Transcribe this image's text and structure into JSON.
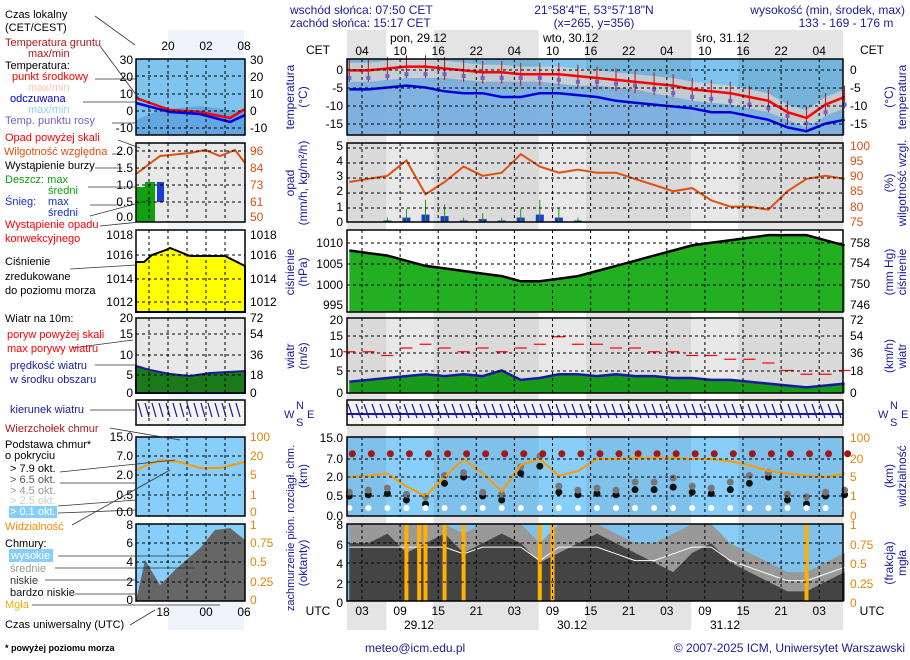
{
  "header": {
    "sunrise": "wschód słońca: 07:50 CET",
    "sunset": "zachód słońca: 15:17 CET",
    "coords": "21°58'4\"E, 53°57'18\"N",
    "grid": "(x=265,  y=356)",
    "elevation_label": "wysokość (min, środek, max)",
    "elevation_values": "133 - 169 - 176 m"
  },
  "time_axis": {
    "cet_label": "CET",
    "utc_label": "UTC",
    "days": [
      "pon, 29.12",
      "wto, 30.12",
      "śro, 31.12"
    ],
    "cet_hours": [
      "04",
      "10",
      "16",
      "22",
      "04",
      "10",
      "16",
      "22",
      "04",
      "10",
      "16",
      "22",
      "04"
    ],
    "utc_hours": [
      "03",
      "09",
      "15",
      "21",
      "03",
      "09",
      "15",
      "21",
      "03",
      "09",
      "15",
      "21",
      "03"
    ],
    "utc_dates": [
      "29.12",
      "30.12",
      "31.12"
    ]
  },
  "panel_labels": {
    "temp": [
      "temperatura",
      "(°C)"
    ],
    "precip": [
      "opad",
      "(mm/h, kg/m²/h)"
    ],
    "pressure": [
      "ciśnienie",
      "(hPa)"
    ],
    "wind": [
      "wiatr",
      "(m/s)"
    ],
    "cloud": [
      "zachmurzenie  pion. rozciągł. chm.",
      "(oktanty)",
      "(km)"
    ],
    "r_temp": [
      "(°C)",
      "temperatura"
    ],
    "r_hum": [
      "(%)",
      "wilgotność wzgl."
    ],
    "r_press": [
      "(mm Hg)",
      "ciśnienie"
    ],
    "r_wind": [
      "(km/h)",
      "wiatr"
    ],
    "r_vis": [
      "(km)",
      "widzialność"
    ],
    "r_fog": [
      "(frakcja)",
      "mgła"
    ],
    "compass": [
      "W",
      "S",
      "N",
      "E"
    ]
  },
  "ticks": {
    "temp": [
      "0",
      "-5",
      "-10",
      "-15"
    ],
    "precip": [
      "5",
      "4",
      "3",
      "2",
      "1",
      "0"
    ],
    "pressure": [
      "1010",
      "1005",
      "1000",
      "995"
    ],
    "wind": [
      "20",
      "15",
      "10",
      "5",
      "0"
    ],
    "cloud": [
      "15.0",
      "7.0",
      "2.0",
      "0.5",
      "0.0"
    ],
    "cover": [
      "8",
      "6",
      "4",
      "2",
      "0"
    ],
    "r_hum": [
      "100",
      "95",
      "90",
      "85",
      "80",
      "75"
    ],
    "r_press": [
      "758",
      "754",
      "750",
      "746"
    ],
    "r_wind": [
      "72",
      "54",
      "36",
      "18",
      "0"
    ],
    "r_vis": [
      "100",
      "20",
      "5",
      "1",
      "0"
    ],
    "r_fog": [
      "1",
      "0.75",
      "0.5",
      "0.25",
      "0"
    ]
  },
  "legend": {
    "local_time": [
      "Czas lokalny",
      "(CET/CEST)"
    ],
    "ground_temp": [
      "Temperatura gruntu",
      "max/min"
    ],
    "temperature": "Temperatura:",
    "mid_point": "punkt środkowy",
    "maxmin": "max/min",
    "feels_like": "odczuwana",
    "maxmin2": "max/min",
    "dew_point": "Temp. punktu rosy",
    "precip_over": "Opad powyżej skali",
    "humidity": "Wilgotność względna",
    "storm": "Wystąpienie burzy",
    "rain_max": "Deszcz: max",
    "rain_mean": "średni",
    "snow": "Śnieg:",
    "snow_max": "max",
    "snow_mean": "średni",
    "convective": [
      "Wystąpienie opadu",
      "konwekcyjnego"
    ],
    "pressure": [
      "Ciśnienie",
      "zredukowane",
      "do poziomu morza"
    ],
    "wind10": "Wiatr na 10m:",
    "gust_over": "poryw powyżej skali",
    "gust_max": "max porywy wiatru",
    "wind_speed": [
      "prędkość wiatru",
      "w środku obszaru"
    ],
    "wind_dir": "kierunek wiatru",
    "cloud_top": "Wierzchołek chmur",
    "cloud_base": [
      "Podstawa chmur*",
      "o pokryciu"
    ],
    "okt": [
      "> 7.9 okt.",
      "> 6.5 okt.",
      "> 4.5 okt.",
      "> 2.5 okt.",
      "> 0.1 okt."
    ],
    "visibility": "Widzialność",
    "clouds": "Chmury:",
    "high": "wysokie",
    "mid": "średnie",
    "low": "niskie",
    "very_low": "bardzo niskie",
    "fog": "Mgła",
    "utc_time": "Czas uniwersalny (UTC)",
    "footnote": "* powyżej poziomu morza",
    "mini_top": [
      "20",
      "02",
      "08"
    ],
    "mini_bottom": [
      "18",
      "00",
      "06"
    ],
    "mini_temp": [
      "30",
      "20",
      "10",
      "0",
      "-10"
    ],
    "mini_precip": [
      "2.0",
      "1.5",
      "1.0",
      "0.5",
      "0.0"
    ],
    "mini_hum": [
      "96",
      "84",
      "73",
      "61",
      "50"
    ],
    "mini_press": [
      "1018",
      "1016",
      "1014",
      "1012"
    ],
    "mini_wind": [
      "20",
      "15",
      "10",
      "5",
      "0"
    ],
    "mini_wind_r": [
      "72",
      "54",
      "36",
      "18",
      "0"
    ],
    "mini_cloud": [
      "15.0",
      "7.0",
      "2.0",
      "0.5",
      "0.0"
    ],
    "mini_cloud_r": [
      "100",
      "20",
      "5",
      "1",
      "0"
    ],
    "mini_cover": [
      "8",
      "6",
      "4",
      "2",
      "0"
    ],
    "mini_cover_r": [
      "1",
      "0.75",
      "0.5",
      "0.25",
      "0"
    ]
  },
  "footer": {
    "email": "meteo@icm.edu.pl",
    "copyright": "© 2007-2025 ICM, Uniwersytet Warszawski"
  },
  "colors": {
    "temp": "#ff0000",
    "feels": "#0000e0",
    "dew": "#7060d0",
    "humidity": "#e05010",
    "pressure_fill": "#22b022",
    "wind_fill": "#1aa01a",
    "gust": "#ff0000",
    "visibility": "#ff9900",
    "fog": "#ffb000",
    "sky": "#87cefa",
    "night": "#d8d8d8"
  },
  "chart_data": {
    "type": "line",
    "title": "meteogram",
    "x_unit": "hours since 29.12 00:00 CET",
    "x": [
      2,
      5,
      8,
      11,
      14,
      17,
      20,
      23,
      26,
      29,
      32,
      35,
      38,
      41,
      44,
      47,
      50,
      53,
      56,
      59,
      62,
      65,
      68,
      71,
      74,
      77,
      80
    ],
    "series": [
      {
        "name": "temperature_C",
        "values": [
          0,
          0,
          0.5,
          1,
          1,
          0.5,
          0,
          -0.5,
          -0.5,
          -1,
          -1,
          -1,
          -1.5,
          -2,
          -2.5,
          -3,
          -3.5,
          -4,
          -5,
          -5.5,
          -6,
          -7,
          -8,
          -11,
          -12.5,
          -9,
          -7
        ]
      },
      {
        "name": "feels_like_C",
        "values": [
          -5,
          -5,
          -4.5,
          -4,
          -4.5,
          -5.5,
          -6,
          -6,
          -7,
          -7,
          -6,
          -6,
          -6.5,
          -7,
          -8,
          -8.5,
          -9,
          -9.5,
          -10,
          -11,
          -11,
          -12,
          -13,
          -15,
          -16,
          -14,
          -13
        ]
      },
      {
        "name": "dew_point_C",
        "values": [
          -2,
          -2,
          -1.5,
          -1,
          -1,
          -1,
          -1.5,
          -2,
          -2,
          -2,
          -2,
          -2.5,
          -3,
          -3,
          -3.5,
          -4,
          -5,
          -6,
          -7,
          -7.5,
          -8,
          -9,
          -10,
          -12,
          -14,
          -11,
          -9
        ]
      },
      {
        "name": "humidity_pct",
        "values": [
          88,
          89,
          90,
          95,
          84,
          88,
          93,
          90,
          91,
          97,
          93,
          91,
          92,
          91,
          91,
          89,
          87,
          85,
          86,
          82,
          80,
          80,
          79,
          85,
          89,
          90,
          89
        ]
      },
      {
        "name": "precip_mm_h",
        "values": [
          0,
          0,
          0.1,
          0.3,
          0.5,
          0.4,
          0.1,
          0.2,
          0.1,
          0.3,
          0.5,
          0.3,
          0.1,
          0,
          0,
          0,
          0,
          0,
          0,
          0,
          0,
          0,
          0,
          0,
          0,
          0,
          0
        ]
      },
      {
        "name": "pressure_hPa",
        "values": [
          1007,
          1006.5,
          1006,
          1005,
          1004,
          1003.5,
          1003,
          1002.5,
          1002,
          1001,
          1001,
          1001.5,
          1002,
          1003,
          1004,
          1005,
          1006,
          1007,
          1008,
          1008.5,
          1009,
          1009.5,
          1010,
          1010,
          1010,
          1009,
          1008
        ]
      },
      {
        "name": "wind_ms",
        "values": [
          3,
          3.5,
          4,
          4.5,
          5,
          4.5,
          5,
          4.5,
          6,
          3.5,
          4,
          5,
          5,
          4.5,
          5,
          4.5,
          4.5,
          4,
          4,
          3.5,
          3.5,
          3,
          2.5,
          2,
          1.5,
          2,
          2.5
        ]
      },
      {
        "name": "gust_ms",
        "values": [
          11,
          11,
          10,
          12,
          13,
          12,
          11,
          12,
          11,
          12,
          13,
          15,
          13,
          13,
          12,
          12,
          11,
          11,
          10,
          10,
          9,
          9,
          8,
          6,
          5,
          5,
          6
        ]
      },
      {
        "name": "visibility_km",
        "values": [
          5,
          6,
          8,
          3,
          1,
          5,
          20,
          8,
          2,
          15,
          20,
          6,
          10,
          20,
          20,
          25,
          25,
          25,
          20,
          20,
          18,
          15,
          10,
          8,
          6,
          5,
          8
        ]
      },
      {
        "name": "cloud_total_okta",
        "values": [
          8,
          8,
          8,
          8,
          8,
          8,
          7,
          8,
          8,
          8,
          6,
          8,
          8,
          8,
          7,
          6,
          6,
          7,
          8,
          8,
          6,
          5,
          4,
          3,
          3,
          4,
          5
        ]
      },
      {
        "name": "cloud_low_okta",
        "values": [
          6,
          6,
          7,
          5,
          6,
          7,
          5,
          6,
          7,
          6,
          4,
          5,
          6,
          7,
          6,
          5,
          4,
          3,
          5,
          6,
          4,
          3,
          2,
          1,
          1,
          2,
          3
        ]
      },
      {
        "name": "cloud_base_km",
        "values": [
          0.5,
          0.6,
          0.7,
          0.4,
          0.3,
          1.5,
          2,
          0.5,
          0.4,
          3,
          5,
          0.8,
          0.6,
          0.7,
          0.6,
          1,
          1,
          1.2,
          0.8,
          0.7,
          1,
          1.5,
          2,
          0.4,
          0.3,
          0.5,
          0.6
        ]
      }
    ],
    "ylim": {
      "temp": [
        -17,
        3
      ],
      "precip": [
        0,
        5
      ],
      "humidity": [
        75,
        100
      ],
      "pressure": [
        995,
        1011
      ],
      "wind": [
        0,
        20
      ],
      "cover": [
        0,
        8
      ]
    }
  }
}
